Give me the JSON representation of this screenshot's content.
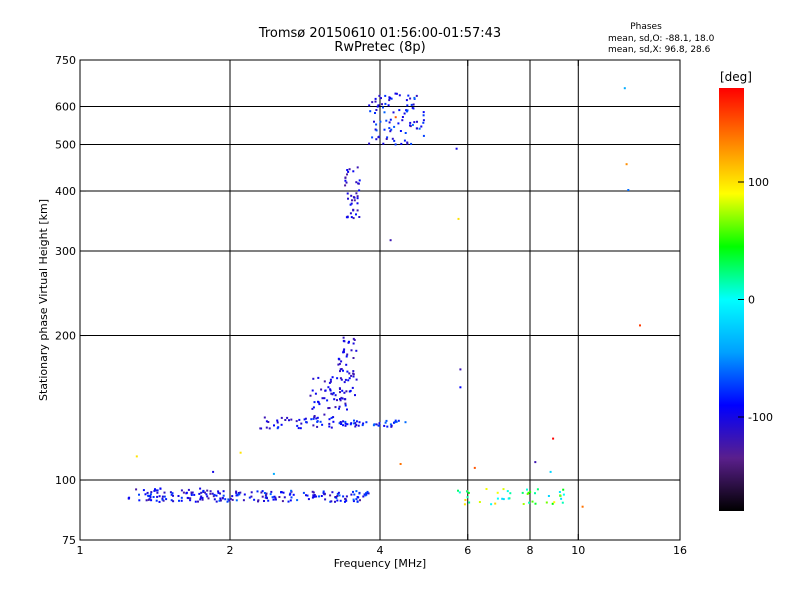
{
  "title": "Tromsø 20150610 01:56:00-01:57:43",
  "subtitle": "RwPretec (8p)",
  "phases": {
    "title": "Phases",
    "o_line": "mean, sd,O: -88.1, 18.0",
    "x_line": "mean, sd,X:  96.8, 28.6"
  },
  "chart_data": {
    "type": "scatter",
    "title": "Tromsø 20150610 01:56:00-01:57:43",
    "subtitle": "RwPretec (8p)",
    "xlabel": "Frequency [MHz]",
    "ylabel": "Stationary phase Virtual Height [km]",
    "xscale": "log",
    "yscale": "log",
    "xlim": [
      1,
      16
    ],
    "ylim": [
      75,
      750
    ],
    "xticks": [
      1,
      2,
      4,
      6,
      8,
      10,
      16
    ],
    "yticks": [
      75,
      100,
      200,
      300,
      400,
      500,
      600,
      750
    ],
    "x_gridlines": [
      2,
      4,
      6,
      8,
      10
    ],
    "y_gridlines": [
      100,
      200,
      300,
      400,
      500,
      600
    ],
    "grid": true,
    "colorbar": {
      "label": "[deg]",
      "range": [
        -180,
        180
      ],
      "ticks": [
        100,
        0,
        -100
      ],
      "stops": [
        "#000000",
        "#5a1f8c",
        "#0000ff",
        "#00a0ff",
        "#00ffff",
        "#00ff00",
        "#ffff00",
        "#ff8000",
        "#ff0000"
      ]
    },
    "series": [
      {
        "clusters": [
          {
            "x0": 1.25,
            "x1": 1.9,
            "y0": 90,
            "y1": 96,
            "n": 90,
            "ph0": -130,
            "ph1": -70
          },
          {
            "x0": 1.9,
            "x1": 3.8,
            "y0": 90,
            "y1": 95,
            "n": 130,
            "ph0": -130,
            "ph1": -60
          },
          {
            "x0": 2.3,
            "x1": 3.3,
            "y0": 128,
            "y1": 136,
            "n": 45,
            "ph0": -120,
            "ph1": -70
          },
          {
            "x0": 3.3,
            "x1": 4.4,
            "y0": 129,
            "y1": 133,
            "n": 40,
            "ph0": -110,
            "ph1": -60
          },
          {
            "x0": 2.9,
            "x1": 3.45,
            "y0": 135,
            "y1": 165,
            "n": 55,
            "ph0": -125,
            "ph1": -80
          },
          {
            "x0": 3.3,
            "x1": 3.6,
            "y0": 150,
            "y1": 200,
            "n": 45,
            "ph0": -125,
            "ph1": -85
          },
          {
            "x0": 3.4,
            "x1": 3.65,
            "y0": 350,
            "y1": 450,
            "n": 40,
            "ph0": -130,
            "ph1": -85
          },
          {
            "x0": 3.8,
            "x1": 4.9,
            "y0": 500,
            "y1": 640,
            "n": 90,
            "ph0": -120,
            "ph1": -60
          },
          {
            "x0": 5.6,
            "x1": 9.5,
            "y0": 89,
            "y1": 96,
            "n": 45,
            "ph0": -20,
            "ph1": 110
          }
        ],
        "points": [
          [
            1.3,
            112,
            100
          ],
          [
            1.45,
            96,
            -90
          ],
          [
            1.85,
            104,
            -100
          ],
          [
            2.1,
            114,
            100
          ],
          [
            2.45,
            103,
            -40
          ],
          [
            4.2,
            316,
            -120
          ],
          [
            4.3,
            133,
            -80
          ],
          [
            4.4,
            108,
            140
          ],
          [
            4.5,
            132,
            -60
          ],
          [
            4.9,
            562,
            -100
          ],
          [
            5.7,
            490,
            -100
          ],
          [
            5.75,
            350,
            100
          ],
          [
            5.8,
            156,
            -90
          ],
          [
            5.8,
            170,
            -120
          ],
          [
            6.2,
            106,
            150
          ],
          [
            8.2,
            109,
            -120
          ],
          [
            8.8,
            104,
            -20
          ],
          [
            8.9,
            122,
            180
          ],
          [
            10.2,
            88,
            140
          ],
          [
            12.4,
            655,
            -40
          ],
          [
            12.5,
            455,
            130
          ],
          [
            12.6,
            402,
            -60
          ],
          [
            13.3,
            210,
            160
          ],
          [
            4.3,
            570,
            150
          ]
        ]
      }
    ]
  }
}
